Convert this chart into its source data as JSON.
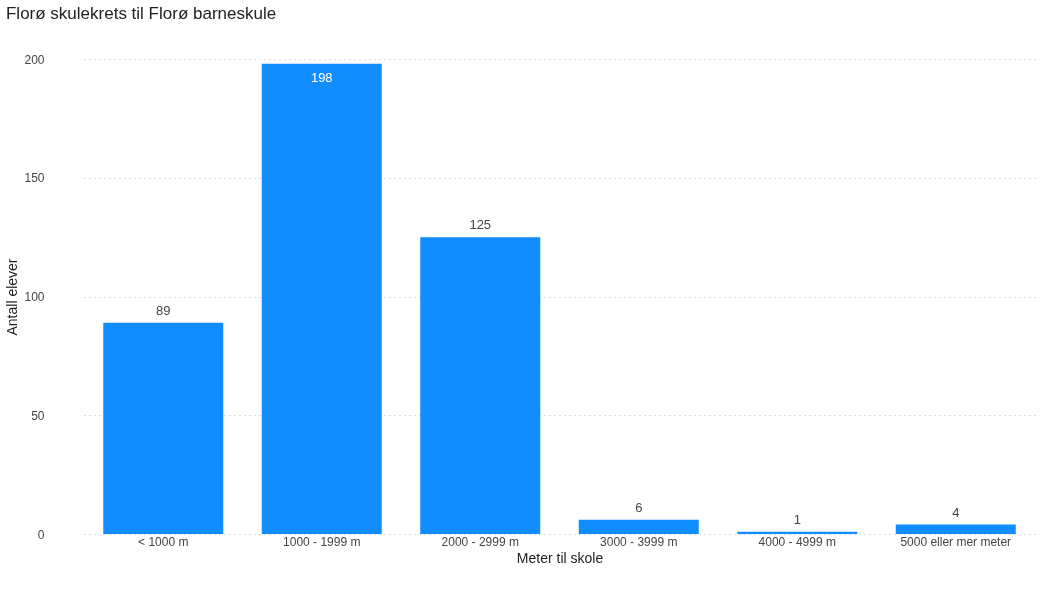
{
  "chart_data": {
    "type": "bar",
    "title": "Florø skulekrets til Florø barneskule",
    "xlabel": "Meter til skole",
    "ylabel": "Antall elever",
    "categories": [
      "< 1000 m",
      "1000 - 1999 m",
      "2000 - 2999 m",
      "3000 - 3999 m",
      "4000 - 4999 m",
      "5000 eller mer meter"
    ],
    "values": [
      89,
      198,
      125,
      6,
      1,
      4
    ],
    "color": "#118dff",
    "ylim": [
      0,
      200
    ],
    "yticks": [
      0,
      50,
      100,
      150,
      200
    ],
    "grid": "y",
    "data_labels": true
  }
}
